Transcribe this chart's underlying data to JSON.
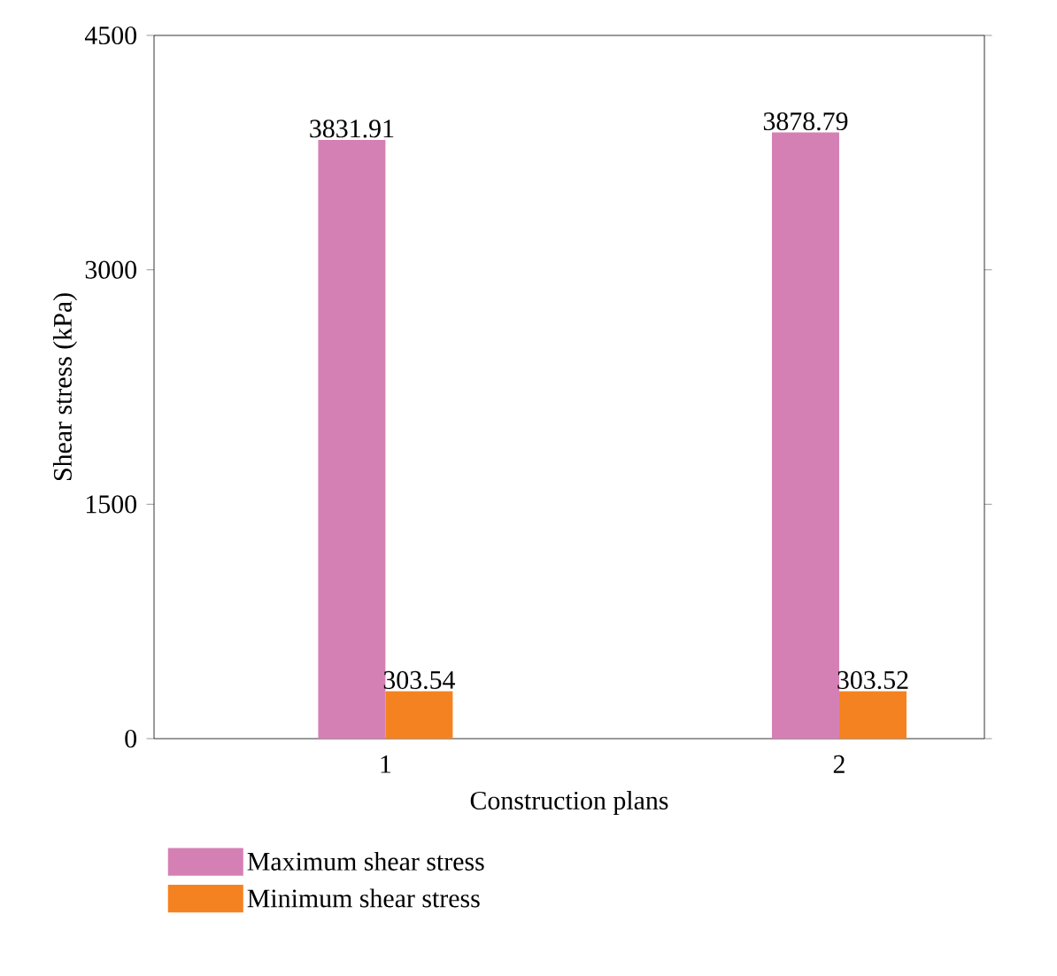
{
  "chart_data": {
    "type": "bar",
    "xlabel": "Construction plans",
    "ylabel": "Shear stress (kPa)",
    "categories": [
      "1",
      "2"
    ],
    "series": [
      {
        "name": "Maximum shear stress",
        "color": "#d580b5",
        "values": [
          3831.91,
          3878.79
        ]
      },
      {
        "name": "Minimum shear stress",
        "color": "#f58220",
        "values": [
          303.54,
          303.52
        ]
      }
    ],
    "ylim": [
      0,
      4500
    ],
    "yticks": [
      0,
      1500,
      3000,
      4500
    ],
    "data_labels": true,
    "legend": "bottom",
    "grid": false
  }
}
